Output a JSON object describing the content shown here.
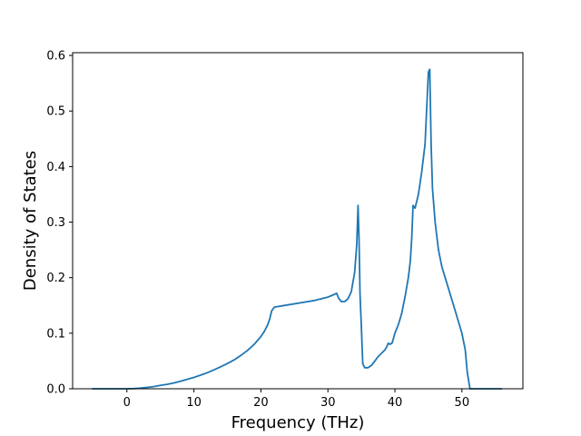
{
  "chart_data": {
    "type": "line",
    "xlabel": "Frequency (THz)",
    "ylabel": "Density of States",
    "xlim": [
      -8.1,
      59.1
    ],
    "ylim": [
      0,
      0.605
    ],
    "xticks": [
      0,
      10,
      20,
      30,
      40,
      50
    ],
    "yticks": [
      0.0,
      0.1,
      0.2,
      0.3,
      0.4,
      0.5,
      0.6
    ],
    "xtick_labels": [
      "0",
      "10",
      "20",
      "30",
      "40",
      "50"
    ],
    "ytick_labels": [
      "0.0",
      "0.1",
      "0.2",
      "0.3",
      "0.4",
      "0.5",
      "0.6"
    ],
    "grid": false,
    "line_color": "#1f77b4",
    "series": [
      {
        "x": [
          -5.2,
          -3,
          -1,
          0,
          1,
          2,
          3,
          4,
          5,
          6,
          7,
          8,
          9,
          10,
          11,
          12,
          13,
          14,
          15,
          16,
          17,
          18,
          19,
          20,
          20.5,
          21,
          21.3,
          21.6,
          22,
          24,
          26,
          28,
          30,
          31,
          31.3,
          31.6,
          32,
          32.5,
          33,
          33.5,
          34,
          34.3,
          34.5,
          34.65,
          34.8,
          35,
          35.2,
          35.5,
          36,
          36.5,
          37,
          37.5,
          38,
          38.5,
          38.8,
          39,
          39.3,
          39.6,
          40,
          40.5,
          41,
          41.5,
          42,
          42.3,
          42.5,
          42.7,
          43,
          43.5,
          44,
          44.5,
          45,
          45.2,
          45.4,
          45.6,
          46,
          46.5,
          47,
          48,
          49,
          50,
          50.5,
          50.8,
          51.2,
          52,
          54,
          56
        ],
        "y": [
          0,
          0,
          0,
          0,
          0.0003,
          0.0012,
          0.0025,
          0.004,
          0.006,
          0.008,
          0.0105,
          0.0135,
          0.017,
          0.0205,
          0.0245,
          0.029,
          0.034,
          0.0395,
          0.0455,
          0.052,
          0.06,
          0.069,
          0.08,
          0.094,
          0.103,
          0.115,
          0.125,
          0.14,
          0.147,
          0.151,
          0.155,
          0.159,
          0.165,
          0.17,
          0.172,
          0.163,
          0.157,
          0.157,
          0.162,
          0.175,
          0.21,
          0.26,
          0.33,
          0.27,
          0.17,
          0.11,
          0.045,
          0.038,
          0.038,
          0.042,
          0.05,
          0.058,
          0.064,
          0.07,
          0.076,
          0.082,
          0.08,
          0.083,
          0.1,
          0.115,
          0.135,
          0.165,
          0.2,
          0.23,
          0.27,
          0.33,
          0.325,
          0.35,
          0.39,
          0.44,
          0.57,
          0.575,
          0.44,
          0.36,
          0.3,
          0.25,
          0.22,
          0.18,
          0.14,
          0.1,
          0.07,
          0.03,
          0,
          0,
          0,
          0
        ]
      }
    ]
  }
}
